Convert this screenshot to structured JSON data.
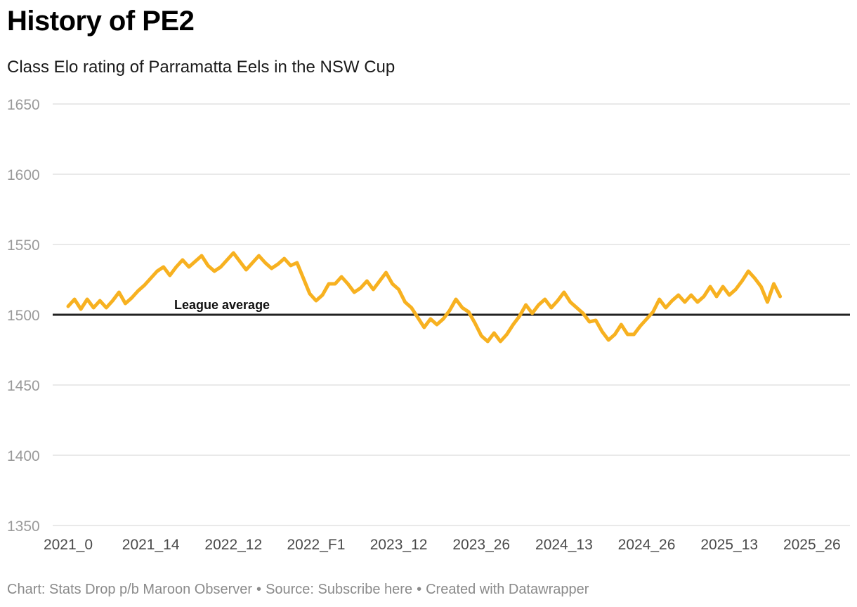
{
  "header": {
    "title": "History of PE2",
    "subtitle": "Class Elo rating of Parramatta Eels in the NSW Cup"
  },
  "footer": {
    "chart_credit": "Chart: Stats Drop p/b Maroon Observer",
    "separator": "•",
    "source": "Source: Subscribe here",
    "created_with": "Created with Datawrapper"
  },
  "colors": {
    "line": "#f7b120",
    "reference_line": "#222222",
    "grid": "#e2e2e2"
  },
  "chart_data": {
    "type": "line",
    "title": "History of PE2",
    "subtitle": "Class Elo rating of Parramatta Eels in the NSW Cup",
    "xlabel": "",
    "ylabel": "",
    "ylim": [
      1350,
      1650
    ],
    "yticks": [
      1650,
      1600,
      1550,
      1500,
      1450,
      1400,
      1350
    ],
    "grid": true,
    "xtick_labels": [
      "2021_0",
      "2021_14",
      "2022_12",
      "2022_F1",
      "2023_12",
      "2023_26",
      "2024_13",
      "2024_26",
      "2025_13",
      "2025_26"
    ],
    "xtick_positions": [
      0,
      13,
      26,
      39,
      52,
      65,
      78,
      91,
      104,
      117
    ],
    "x_index_range": [
      0,
      120
    ],
    "reference_line": {
      "value": 1500,
      "label": "League average"
    },
    "series": [
      {
        "values": [
          1506,
          1511,
          1504,
          1511,
          1505,
          1510,
          1505,
          1510,
          1516,
          1508,
          1512,
          1517,
          1521,
          1526,
          1531,
          1534,
          1528,
          1534,
          1539,
          1534,
          1538,
          1542,
          1535,
          1531,
          1534,
          1539,
          1544,
          1538,
          1532,
          1537,
          1542,
          1537,
          1533,
          1536,
          1540,
          1535,
          1537,
          1526,
          1515,
          1510,
          1514,
          1522,
          1522,
          1527,
          1522,
          1516,
          1519,
          1524,
          1518,
          1524,
          1530,
          1522,
          1518,
          1509,
          1505,
          1498,
          1491,
          1497,
          1493,
          1497,
          1503,
          1511,
          1505,
          1502,
          1494,
          1485,
          1481,
          1487,
          1481,
          1486,
          1493,
          1499,
          1507,
          1501,
          1507,
          1511,
          1505,
          1510,
          1516,
          1509,
          1505,
          1501,
          1495,
          1496,
          1488,
          1482,
          1486,
          1493,
          1486,
          1486,
          1492,
          1497,
          1502,
          1511,
          1505,
          1510,
          1514,
          1509,
          1514,
          1509,
          1513,
          1520,
          1513,
          1520,
          1514,
          1518,
          1524,
          1531,
          1526,
          1520,
          1509,
          1522,
          1513
        ]
      }
    ]
  }
}
